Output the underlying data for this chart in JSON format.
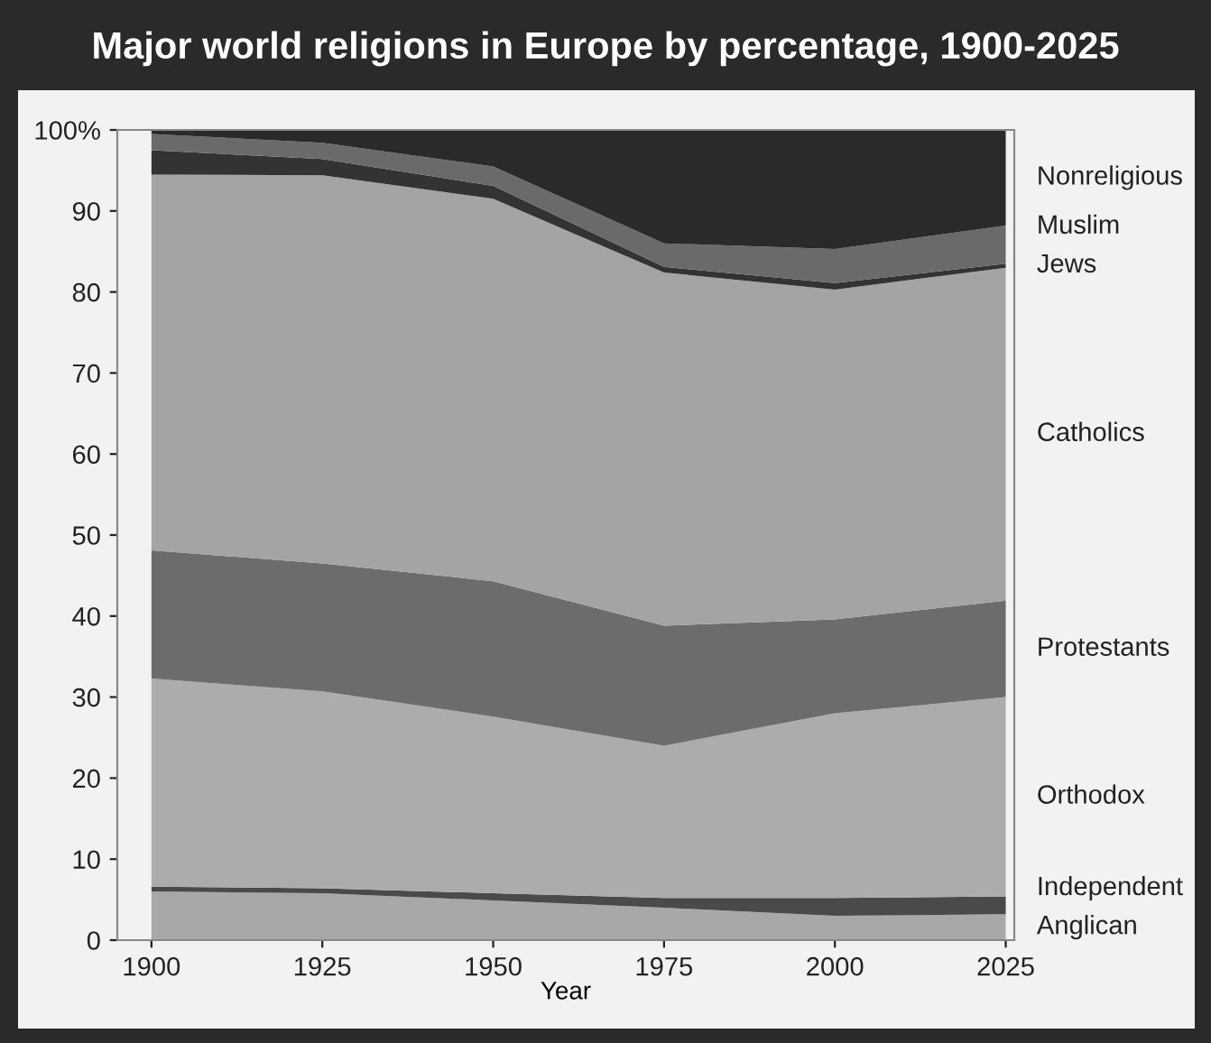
{
  "chart_data": {
    "type": "area",
    "stacked": true,
    "title": "Major world religions in Europe by percentage, 1900-2025",
    "xlabel": "Year",
    "categories": [
      "1900",
      "1925",
      "1950",
      "1975",
      "2000",
      "2025"
    ],
    "series": [
      {
        "name": "Anglican",
        "color": "#a8a8a8",
        "values": [
          6.0,
          5.8,
          4.9,
          4.0,
          3.0,
          3.2
        ]
      },
      {
        "name": "Independent",
        "color": "#4a4a4a",
        "values": [
          0.6,
          0.6,
          0.9,
          1.2,
          2.2,
          2.2
        ]
      },
      {
        "name": "Orthodox",
        "color": "#acacac",
        "values": [
          25.7,
          24.3,
          21.8,
          18.8,
          22.8,
          24.6
        ]
      },
      {
        "name": "Protestants",
        "color": "#6c6c6c",
        "values": [
          15.8,
          15.8,
          16.7,
          14.8,
          11.6,
          11.9
        ]
      },
      {
        "name": "Catholics",
        "color": "#a4a4a4",
        "values": [
          46.4,
          47.9,
          47.2,
          43.6,
          40.7,
          41.1
        ]
      },
      {
        "name": "Jews",
        "color": "#333333",
        "values": [
          3.0,
          2.0,
          1.6,
          0.7,
          0.8,
          0.5
        ]
      },
      {
        "name": "Muslim",
        "color": "#6a6a6a",
        "values": [
          2.0,
          2.0,
          2.4,
          2.9,
          4.2,
          4.7
        ]
      },
      {
        "name": "Nonreligious",
        "color": "#2a2a2a",
        "values": [
          0.5,
          1.6,
          4.5,
          14.0,
          14.7,
          11.8
        ]
      }
    ],
    "ylim": [
      0,
      100
    ],
    "yticks": [
      0,
      10,
      20,
      30,
      40,
      50,
      60,
      70,
      80,
      90,
      {
        "value": 100,
        "label": "100%"
      }
    ],
    "grid": false,
    "legend": false
  }
}
